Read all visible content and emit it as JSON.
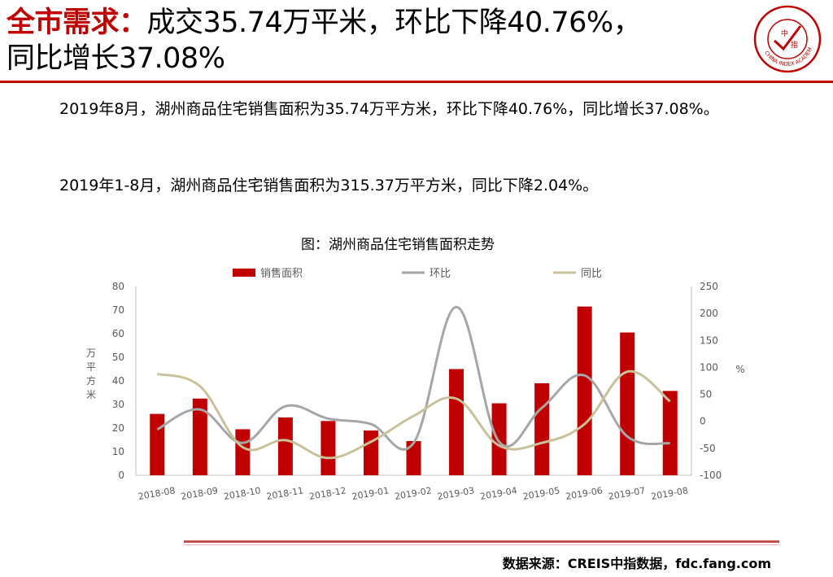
{
  "header": {
    "title_accent": "全市需求：",
    "title_line1": "成交35.74万平米，环比下降40.76%，",
    "title_line2": "同比增长37.08%",
    "logo": {
      "center_text_1": "中",
      "center_text_2": "指",
      "ring_text": "CHINA INDEX ACADEMY",
      "icon": "china-index-academy-logo"
    }
  },
  "body": {
    "para1": "2019年8月，湖州商品住宅销售面积为35.74万平方米，环比下降40.76%，同比增长37.08%。",
    "para2": "2019年1-8月，湖州商品住宅销售面积为315.37万平方米，同比下降2.04%。"
  },
  "chart_title": "图：湖州商品住宅销售面积走势",
  "chart_data": {
    "type": "bar",
    "categories": [
      "2018-08",
      "2018-09",
      "2018-10",
      "2018-11",
      "2018-12",
      "2019-01",
      "2019-02",
      "2019-03",
      "2019-04",
      "2019-05",
      "2019-06",
      "2019-07",
      "2019-08"
    ],
    "series": [
      {
        "name": "销售面积",
        "type": "bar",
        "axis": "left",
        "color": "#c00000",
        "values": [
          26,
          32.5,
          19.5,
          24.5,
          23,
          19,
          14.5,
          45,
          30.5,
          39,
          71.5,
          60.5,
          35.74
        ]
      },
      {
        "name": "环比",
        "type": "line",
        "axis": "right",
        "color": "#a6a6a6",
        "values": [
          -15,
          22,
          -40,
          28,
          5,
          -5,
          -40,
          212,
          -38,
          25,
          85,
          -28,
          -40.76
        ]
      },
      {
        "name": "同比",
        "type": "line",
        "axis": "right",
        "color": "#c9c19a",
        "values": [
          88,
          65,
          -48,
          -35,
          -68,
          -38,
          10,
          42,
          -45,
          -40,
          -5,
          92,
          37.08
        ]
      }
    ],
    "ylabel_left": "万平方米",
    "ylabel_right": "%",
    "ylim_left": [
      0,
      80
    ],
    "yticks_left": [
      0,
      10,
      20,
      30,
      40,
      50,
      60,
      70,
      80
    ],
    "ylim_right": [
      -100,
      250
    ],
    "yticks_right": [
      -100,
      -50,
      0,
      50,
      100,
      150,
      200,
      250
    ],
    "legend_position": "top",
    "grid": false
  },
  "footer": {
    "source": "数据来源：CREIS中指数据，fdc.fang.com"
  }
}
